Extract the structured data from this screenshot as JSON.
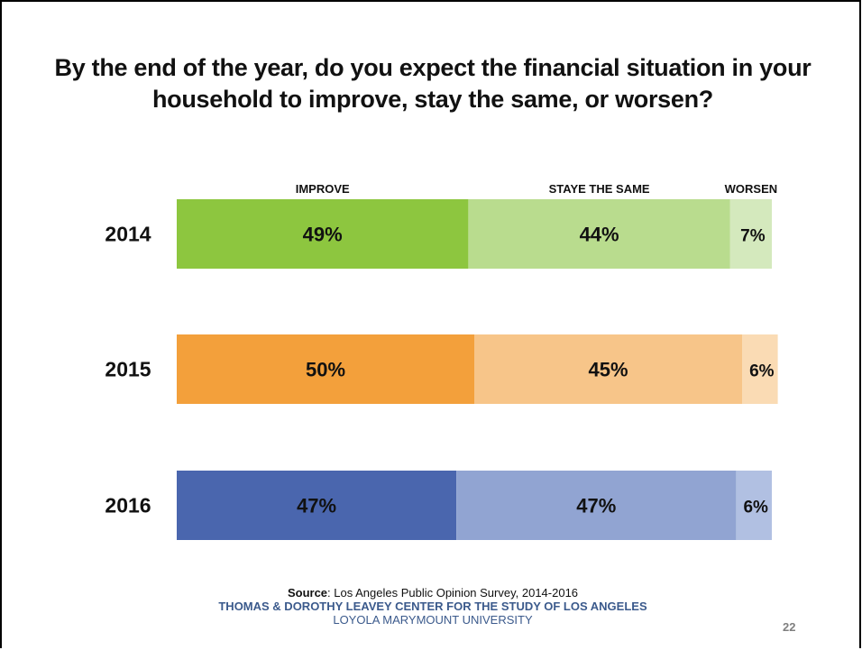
{
  "title": "By the end of the year, do you expect the financial situation in your household to improve, stay the same, or worsen?",
  "chart_data": {
    "type": "bar",
    "orientation": "horizontal-stacked-100",
    "title": "By the end of the year, do you expect the financial situation in your household to improve, stay the same, or worsen?",
    "categories": [
      "2014",
      "2015",
      "2016"
    ],
    "segment_headers": [
      "IMPROVE",
      "STAYE THE SAME",
      "WORSEN"
    ],
    "series": [
      {
        "name": "IMPROVE",
        "values": [
          49,
          50,
          47
        ],
        "labels": [
          "49%",
          "50%",
          "47%"
        ]
      },
      {
        "name": "STAYE THE SAME",
        "values": [
          44,
          45,
          47
        ],
        "labels": [
          "44%",
          "45%",
          "47%"
        ]
      },
      {
        "name": "WORSEN",
        "values": [
          7,
          6,
          6
        ],
        "labels": [
          "7%",
          "6%",
          "6%"
        ]
      }
    ],
    "xlim": [
      0,
      100
    ],
    "grid": false,
    "legend": "none",
    "row_colors": [
      [
        "#8dc63f",
        "#b9dc8e",
        "#d4e9bd"
      ],
      [
        "#f3a03b",
        "#f7c589",
        "#fadbb4"
      ],
      [
        "#4a66ae",
        "#91a4d2",
        "#b1c0e2"
      ]
    ]
  },
  "footer": {
    "source_label": "Source",
    "source_text": ": Los Angeles Public Opinion Survey, 2014-2016",
    "org": "THOMAS & DOROTHY LEAVEY CENTER FOR THE STUDY OF LOS ANGELES",
    "university": "LOYOLA MARYMOUNT UNIVERSITY"
  },
  "page_number": "22"
}
